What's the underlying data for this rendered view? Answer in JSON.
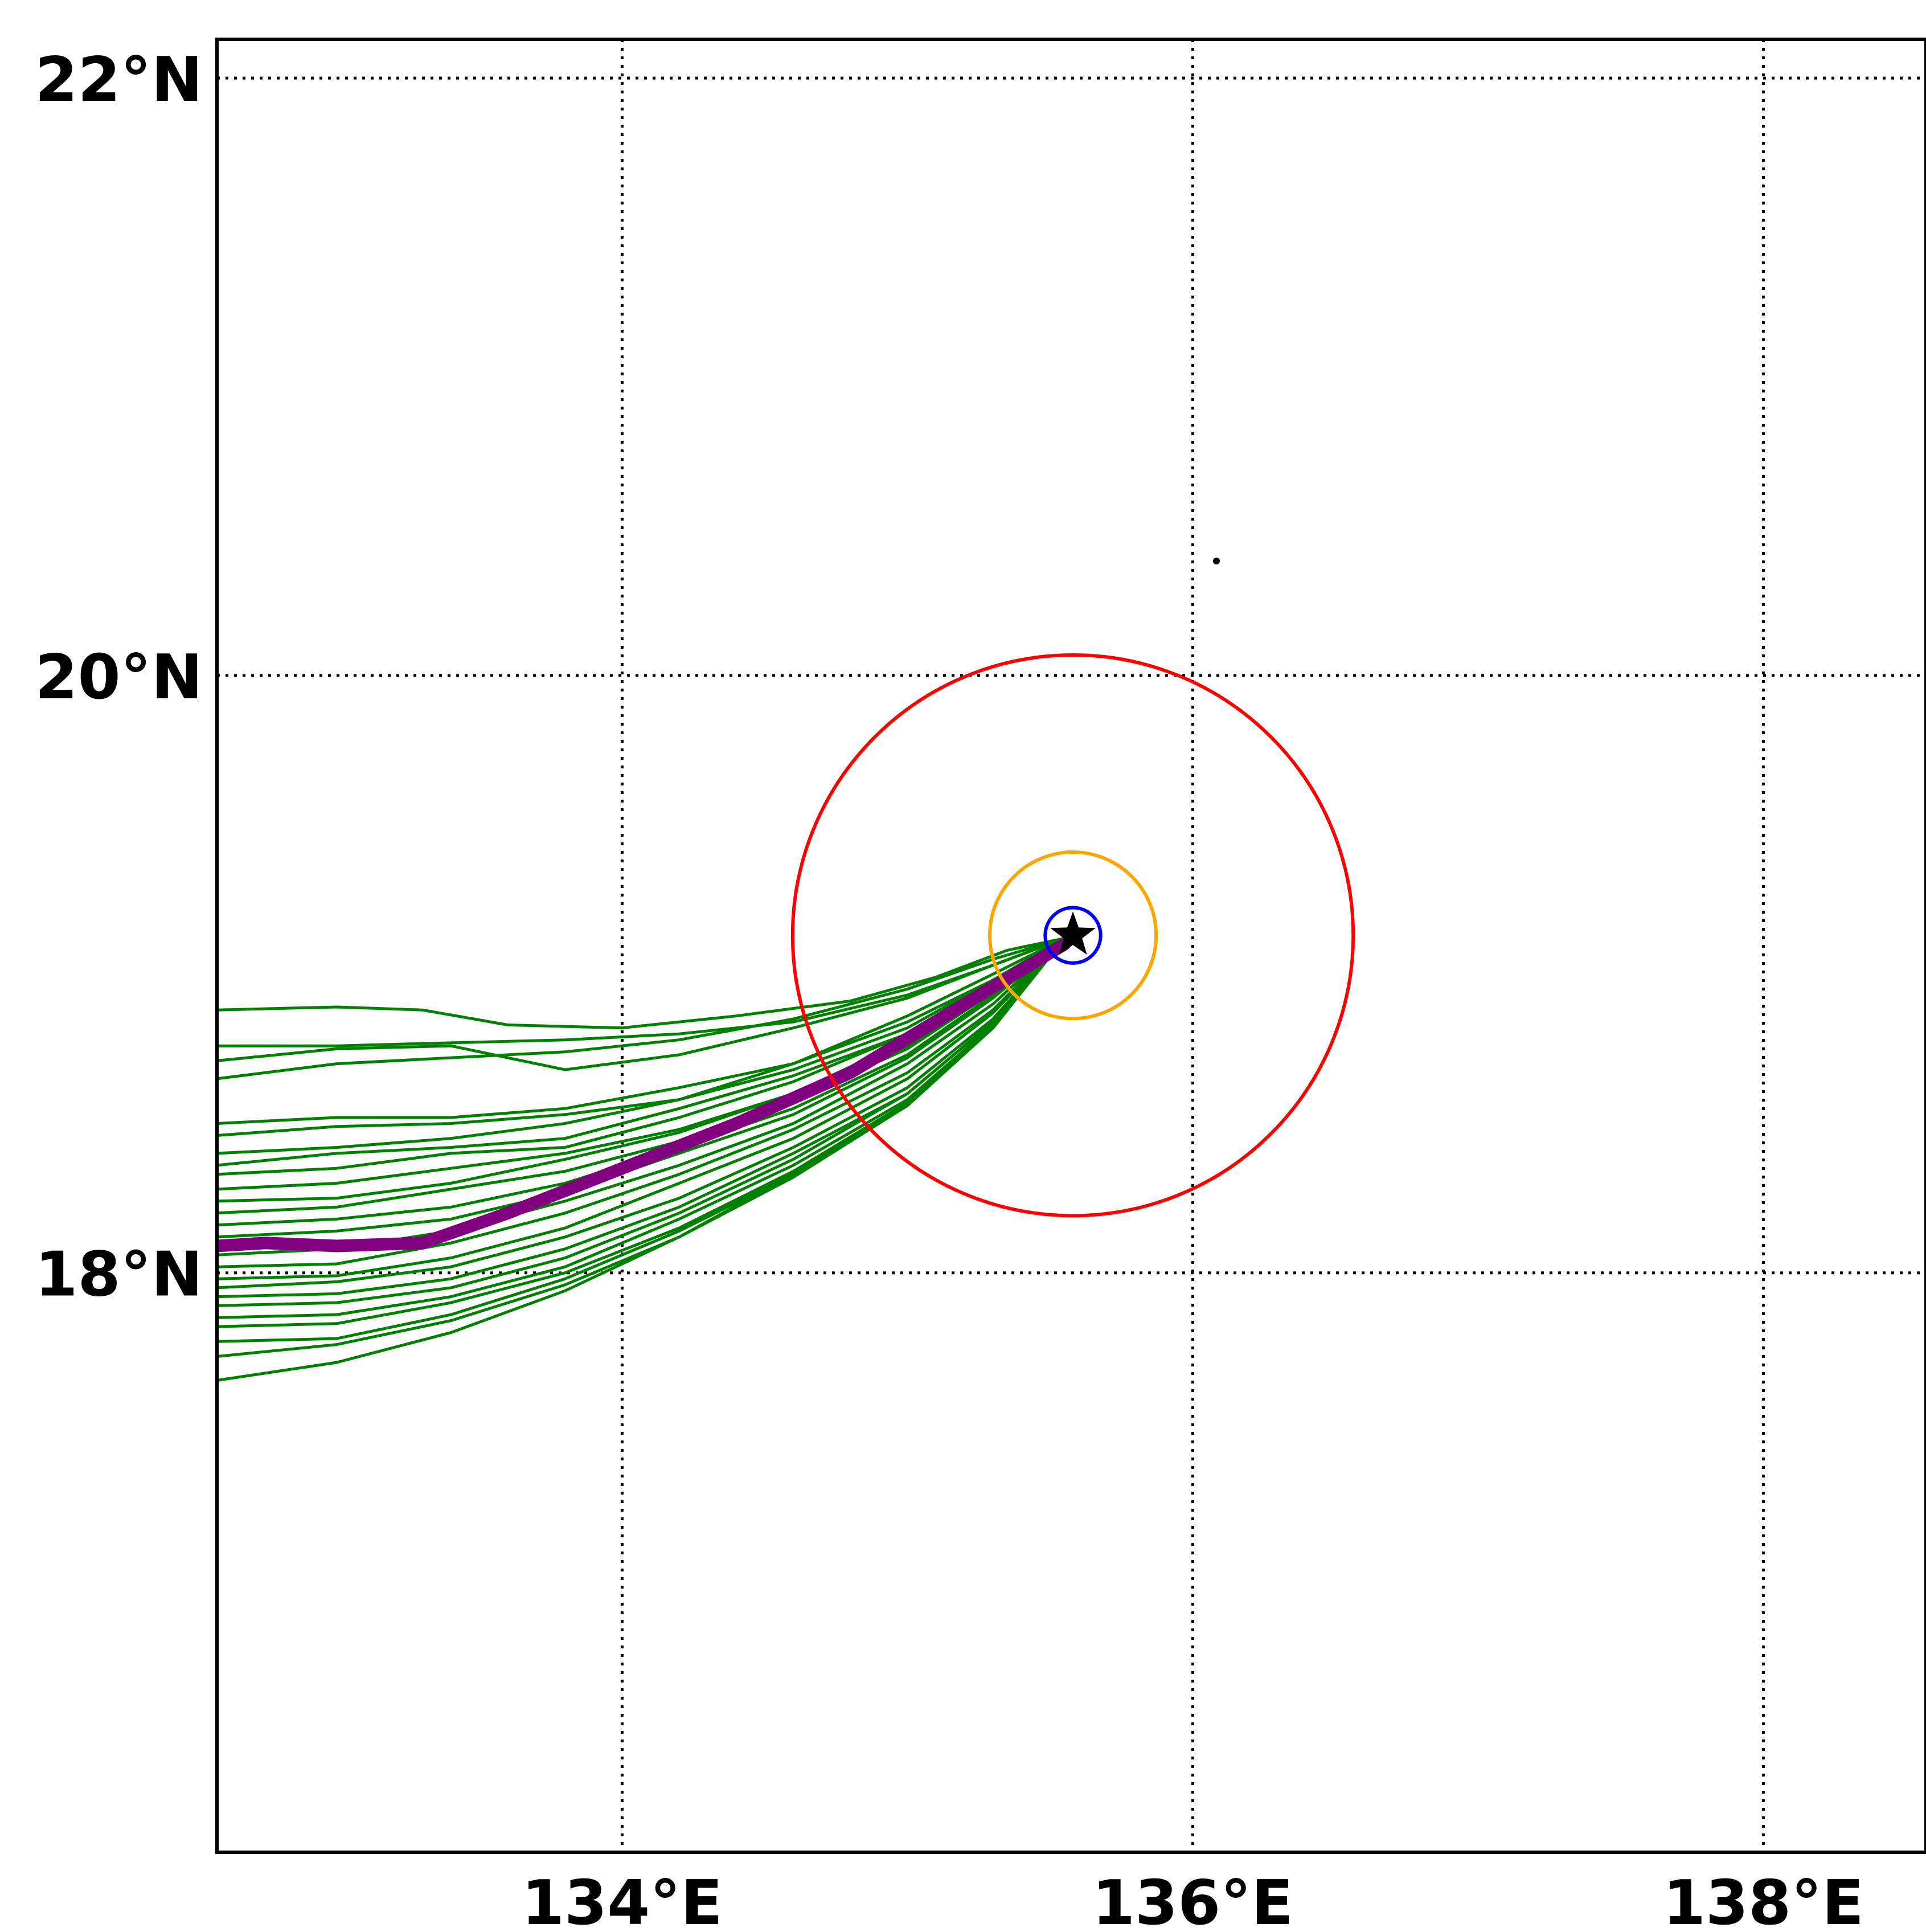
{
  "map": {
    "lon_range": [
      132.58,
      138.57
    ],
    "lat_range": [
      16.06,
      22.13
    ],
    "lat_ticks": [
      {
        "value": 22,
        "label": "22°N"
      },
      {
        "value": 20,
        "label": "20°N"
      },
      {
        "value": 18,
        "label": "18°N"
      }
    ],
    "lon_ticks": [
      {
        "value": 134,
        "label": "134°E"
      },
      {
        "value": 136,
        "label": "136°E"
      },
      {
        "value": 138,
        "label": "138°E"
      }
    ],
    "grid": "dotted",
    "storm_center": {
      "lon": 135.58,
      "lat": 19.13,
      "marker": "star-icon"
    },
    "rings": [
      {
        "name": "red-ring",
        "radius_deg": 0.96,
        "color": "#ff0000"
      },
      {
        "name": "orange-ring",
        "radius_deg": 0.285,
        "color": "#ffa500"
      },
      {
        "name": "blue-ring",
        "radius_deg": 0.095,
        "color": "#0000ff"
      }
    ],
    "ensemble_color": "#008000",
    "mean_track_color": "#800080",
    "mean_track": [
      [
        132.58,
        18.09
      ],
      [
        132.75,
        18.1
      ],
      [
        133.0,
        18.09
      ],
      [
        133.3,
        18.1
      ],
      [
        133.6,
        18.2
      ],
      [
        134.0,
        18.35
      ],
      [
        134.4,
        18.5
      ],
      [
        134.8,
        18.67
      ],
      [
        135.2,
        18.9
      ],
      [
        135.55,
        19.1
      ]
    ],
    "ensemble_tracks": [
      [
        [
          132.58,
          18.88
        ],
        [
          133.0,
          18.89
        ],
        [
          133.3,
          18.88
        ],
        [
          133.6,
          18.83
        ],
        [
          134.0,
          18.82
        ],
        [
          134.4,
          18.86
        ],
        [
          134.8,
          18.91
        ],
        [
          135.1,
          18.99
        ],
        [
          135.35,
          19.08
        ],
        [
          135.55,
          19.12
        ]
      ],
      [
        [
          132.58,
          18.76
        ],
        [
          133.0,
          18.76
        ],
        [
          133.4,
          18.77
        ],
        [
          133.8,
          18.78
        ],
        [
          134.2,
          18.8
        ],
        [
          134.6,
          18.84
        ],
        [
          135.0,
          18.93
        ],
        [
          135.3,
          19.03
        ],
        [
          135.55,
          19.12
        ]
      ],
      [
        [
          132.58,
          18.71
        ],
        [
          133.0,
          18.75
        ],
        [
          133.4,
          18.76
        ],
        [
          133.8,
          18.68
        ],
        [
          134.2,
          18.73
        ],
        [
          134.6,
          18.82
        ],
        [
          135.0,
          18.92
        ],
        [
          135.3,
          19.03
        ],
        [
          135.55,
          19.12
        ]
      ],
      [
        [
          132.58,
          18.65
        ],
        [
          133.0,
          18.7
        ],
        [
          133.4,
          18.72
        ],
        [
          133.8,
          18.74
        ],
        [
          134.2,
          18.78
        ],
        [
          134.6,
          18.85
        ],
        [
          135.0,
          18.95
        ],
        [
          135.3,
          19.05
        ],
        [
          135.55,
          19.12
        ]
      ],
      [
        [
          132.58,
          18.5
        ],
        [
          133.0,
          18.52
        ],
        [
          133.4,
          18.52
        ],
        [
          133.8,
          18.55
        ],
        [
          134.2,
          18.62
        ],
        [
          134.6,
          18.7
        ],
        [
          135.0,
          18.84
        ],
        [
          135.3,
          18.98
        ],
        [
          135.55,
          19.12
        ]
      ],
      [
        [
          132.58,
          18.46
        ],
        [
          133.0,
          18.49
        ],
        [
          133.4,
          18.5
        ],
        [
          133.8,
          18.53
        ],
        [
          134.2,
          18.58
        ],
        [
          134.6,
          18.68
        ],
        [
          135.0,
          18.82
        ],
        [
          135.3,
          18.98
        ],
        [
          135.55,
          19.12
        ]
      ],
      [
        [
          132.58,
          18.4
        ],
        [
          133.0,
          18.42
        ],
        [
          133.4,
          18.45
        ],
        [
          133.8,
          18.5
        ],
        [
          134.2,
          18.58
        ],
        [
          134.6,
          18.7
        ],
        [
          135.0,
          18.86
        ],
        [
          135.3,
          19.0
        ],
        [
          135.55,
          19.12
        ]
      ],
      [
        [
          132.58,
          18.36
        ],
        [
          133.0,
          18.4
        ],
        [
          133.4,
          18.42
        ],
        [
          133.8,
          18.45
        ],
        [
          134.2,
          18.55
        ],
        [
          134.6,
          18.66
        ],
        [
          135.0,
          18.8
        ],
        [
          135.3,
          18.97
        ],
        [
          135.55,
          19.12
        ]
      ],
      [
        [
          132.58,
          18.33
        ],
        [
          133.0,
          18.35
        ],
        [
          133.4,
          18.4
        ],
        [
          133.8,
          18.42
        ],
        [
          134.2,
          18.52
        ],
        [
          134.6,
          18.64
        ],
        [
          135.0,
          18.8
        ],
        [
          135.3,
          18.97
        ],
        [
          135.55,
          19.12
        ]
      ],
      [
        [
          132.58,
          18.28
        ],
        [
          133.0,
          18.3
        ],
        [
          133.4,
          18.35
        ],
        [
          133.8,
          18.4
        ],
        [
          134.2,
          18.48
        ],
        [
          134.6,
          18.6
        ],
        [
          135.0,
          18.76
        ],
        [
          135.3,
          18.95
        ],
        [
          135.55,
          19.12
        ]
      ],
      [
        [
          132.58,
          18.24
        ],
        [
          133.0,
          18.25
        ],
        [
          133.4,
          18.3
        ],
        [
          133.8,
          18.38
        ],
        [
          134.2,
          18.47
        ],
        [
          134.6,
          18.6
        ],
        [
          135.0,
          18.78
        ],
        [
          135.3,
          18.95
        ],
        [
          135.55,
          19.12
        ]
      ],
      [
        [
          132.58,
          18.2
        ],
        [
          133.0,
          18.22
        ],
        [
          133.4,
          18.28
        ],
        [
          133.8,
          18.34
        ],
        [
          134.2,
          18.44
        ],
        [
          134.6,
          18.58
        ],
        [
          135.0,
          18.75
        ],
        [
          135.3,
          18.94
        ],
        [
          135.55,
          19.12
        ]
      ],
      [
        [
          132.58,
          18.16
        ],
        [
          133.0,
          18.18
        ],
        [
          133.4,
          18.22
        ],
        [
          133.8,
          18.3
        ],
        [
          134.2,
          18.42
        ],
        [
          134.6,
          18.55
        ],
        [
          135.0,
          18.73
        ],
        [
          135.3,
          18.93
        ],
        [
          135.55,
          19.12
        ]
      ],
      [
        [
          132.58,
          18.12
        ],
        [
          133.0,
          18.14
        ],
        [
          133.4,
          18.18
        ],
        [
          133.8,
          18.27
        ],
        [
          134.2,
          18.4
        ],
        [
          134.6,
          18.53
        ],
        [
          135.0,
          18.72
        ],
        [
          135.3,
          18.92
        ],
        [
          135.55,
          19.12
        ]
      ],
      [
        [
          132.58,
          18.06
        ],
        [
          133.0,
          18.08
        ],
        [
          133.4,
          18.14
        ],
        [
          133.8,
          18.24
        ],
        [
          134.2,
          18.36
        ],
        [
          134.6,
          18.5
        ],
        [
          135.0,
          18.7
        ],
        [
          135.3,
          18.9
        ],
        [
          135.55,
          19.12
        ]
      ],
      [
        [
          132.58,
          18.02
        ],
        [
          133.0,
          18.03
        ],
        [
          133.4,
          18.1
        ],
        [
          133.8,
          18.2
        ],
        [
          134.2,
          18.33
        ],
        [
          134.6,
          18.48
        ],
        [
          135.0,
          18.67
        ],
        [
          135.3,
          18.88
        ],
        [
          135.55,
          19.12
        ]
      ],
      [
        [
          132.58,
          17.98
        ],
        [
          133.0,
          17.99
        ],
        [
          133.4,
          18.05
        ],
        [
          133.8,
          18.15
        ],
        [
          134.2,
          18.3
        ],
        [
          134.6,
          18.45
        ],
        [
          135.0,
          18.65
        ],
        [
          135.3,
          18.87
        ],
        [
          135.55,
          19.12
        ]
      ],
      [
        [
          132.58,
          17.95
        ],
        [
          133.0,
          17.97
        ],
        [
          133.4,
          18.02
        ],
        [
          133.8,
          18.12
        ],
        [
          134.2,
          18.25
        ],
        [
          134.6,
          18.42
        ],
        [
          135.0,
          18.62
        ],
        [
          135.3,
          18.85
        ],
        [
          135.55,
          19.12
        ]
      ],
      [
        [
          132.58,
          17.92
        ],
        [
          133.0,
          17.93
        ],
        [
          133.4,
          17.98
        ],
        [
          133.8,
          18.08
        ],
        [
          134.2,
          18.22
        ],
        [
          134.6,
          18.4
        ],
        [
          135.0,
          18.6
        ],
        [
          135.3,
          18.84
        ],
        [
          135.55,
          19.12
        ]
      ],
      [
        [
          132.58,
          17.89
        ],
        [
          133.0,
          17.9
        ],
        [
          133.4,
          17.95
        ],
        [
          133.8,
          18.05
        ],
        [
          134.2,
          18.2
        ],
        [
          134.6,
          18.38
        ],
        [
          135.0,
          18.6
        ],
        [
          135.3,
          18.84
        ],
        [
          135.55,
          19.12
        ]
      ],
      [
        [
          132.58,
          17.85
        ],
        [
          133.0,
          17.86
        ],
        [
          133.4,
          17.92
        ],
        [
          133.8,
          18.02
        ],
        [
          134.2,
          18.18
        ],
        [
          134.6,
          18.36
        ],
        [
          135.0,
          18.58
        ],
        [
          135.3,
          18.83
        ],
        [
          135.55,
          19.12
        ]
      ],
      [
        [
          132.58,
          17.82
        ],
        [
          133.0,
          17.83
        ],
        [
          133.4,
          17.9
        ],
        [
          133.8,
          18.0
        ],
        [
          134.2,
          18.15
        ],
        [
          134.6,
          18.34
        ],
        [
          135.0,
          18.57
        ],
        [
          135.3,
          18.82
        ],
        [
          135.55,
          19.12
        ]
      ],
      [
        [
          132.58,
          17.77
        ],
        [
          133.0,
          17.78
        ],
        [
          133.4,
          17.86
        ],
        [
          133.8,
          17.98
        ],
        [
          134.2,
          18.14
        ],
        [
          134.6,
          18.33
        ],
        [
          135.0,
          18.56
        ],
        [
          135.3,
          18.82
        ],
        [
          135.55,
          19.12
        ]
      ],
      [
        [
          132.58,
          17.72
        ],
        [
          133.0,
          17.76
        ],
        [
          133.4,
          17.84
        ],
        [
          133.8,
          17.96
        ],
        [
          134.2,
          18.12
        ],
        [
          134.6,
          18.32
        ],
        [
          135.0,
          18.56
        ],
        [
          135.3,
          18.82
        ],
        [
          135.55,
          19.12
        ]
      ],
      [
        [
          132.58,
          17.64
        ],
        [
          133.0,
          17.7
        ],
        [
          133.4,
          17.8
        ],
        [
          133.8,
          17.94
        ],
        [
          134.2,
          18.12
        ],
        [
          134.6,
          18.33
        ],
        [
          135.0,
          18.57
        ],
        [
          135.3,
          18.83
        ],
        [
          135.55,
          19.12
        ]
      ]
    ]
  }
}
